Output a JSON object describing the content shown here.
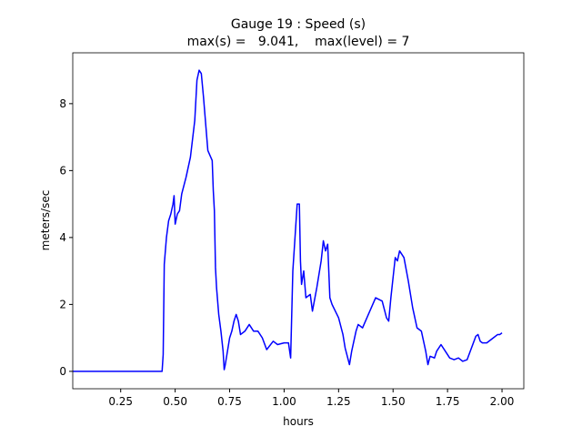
{
  "chart_data": {
    "type": "line",
    "title": "Gauge 19 : Speed (s)",
    "subtitle": "max(s) =   9.041,    max(level) = 7",
    "x_label": "hours",
    "y_label": "meters/sec",
    "xlim": [
      0.03,
      2.1
    ],
    "ylim": [
      -0.52,
      9.52
    ],
    "xticks": [
      0.25,
      {
        "value": 0.5,
        "label": "0.50"
      },
      0.75,
      {
        "value": 1.0,
        "label": "1.00"
      },
      1.25,
      {
        "value": 1.5,
        "label": "1.50"
      },
      1.75,
      {
        "value": 2.0,
        "label": "2.00"
      }
    ],
    "yticks": [
      0,
      2,
      4,
      6,
      8
    ],
    "grid": false,
    "series": [
      {
        "color": "#0000ff",
        "x": [
          0.03,
          0.44,
          0.445,
          0.45,
          0.46,
          0.47,
          0.48,
          0.49,
          0.495,
          0.5,
          0.51,
          0.52,
          0.53,
          0.55,
          0.57,
          0.59,
          0.6,
          0.61,
          0.62,
          0.63,
          0.65,
          0.67,
          0.675,
          0.68,
          0.685,
          0.69,
          0.7,
          0.71,
          0.72,
          0.725,
          0.73,
          0.75,
          0.76,
          0.77,
          0.78,
          0.79,
          0.8,
          0.82,
          0.84,
          0.86,
          0.88,
          0.9,
          0.92,
          0.95,
          0.97,
          1.0,
          1.02,
          1.03,
          1.04,
          1.05,
          1.06,
          1.07,
          1.075,
          1.08,
          1.09,
          1.1,
          1.12,
          1.13,
          1.15,
          1.17,
          1.18,
          1.19,
          1.2,
          1.21,
          1.22,
          1.25,
          1.27,
          1.28,
          1.3,
          1.31,
          1.33,
          1.34,
          1.36,
          1.38,
          1.4,
          1.42,
          1.45,
          1.47,
          1.48,
          1.49,
          1.5,
          1.51,
          1.52,
          1.53,
          1.55,
          1.57,
          1.59,
          1.61,
          1.63,
          1.65,
          1.66,
          1.67,
          1.69,
          1.7,
          1.72,
          1.74,
          1.76,
          1.78,
          1.8,
          1.82,
          1.84,
          1.86,
          1.88,
          1.89,
          1.9,
          1.91,
          1.93,
          1.96,
          1.98,
          1.99,
          2.0
        ],
        "values": [
          0,
          0,
          0.5,
          3.2,
          4.0,
          4.5,
          4.7,
          5.0,
          5.25,
          4.4,
          4.7,
          4.8,
          5.3,
          5.8,
          6.4,
          7.5,
          8.7,
          9.0,
          8.9,
          8.2,
          6.6,
          6.3,
          5.4,
          4.8,
          3.1,
          2.5,
          1.7,
          1.2,
          0.6,
          0.05,
          0.2,
          1.0,
          1.2,
          1.5,
          1.7,
          1.5,
          1.1,
          1.2,
          1.4,
          1.2,
          1.2,
          1.0,
          0.65,
          0.9,
          0.8,
          0.85,
          0.85,
          0.4,
          3.0,
          4.0,
          5.0,
          5.0,
          3.3,
          2.6,
          3.0,
          2.2,
          2.3,
          1.8,
          2.5,
          3.3,
          3.9,
          3.6,
          3.8,
          2.2,
          2.0,
          1.6,
          1.1,
          0.7,
          0.2,
          0.6,
          1.2,
          1.4,
          1.3,
          1.6,
          1.9,
          2.2,
          2.1,
          1.6,
          1.5,
          2.2,
          2.8,
          3.4,
          3.3,
          3.6,
          3.4,
          2.7,
          1.9,
          1.3,
          1.2,
          0.6,
          0.2,
          0.45,
          0.4,
          0.6,
          0.8,
          0.6,
          0.4,
          0.35,
          0.4,
          0.3,
          0.35,
          0.7,
          1.05,
          1.1,
          0.9,
          0.85,
          0.85,
          1.0,
          1.1,
          1.1,
          1.15
        ]
      }
    ]
  }
}
